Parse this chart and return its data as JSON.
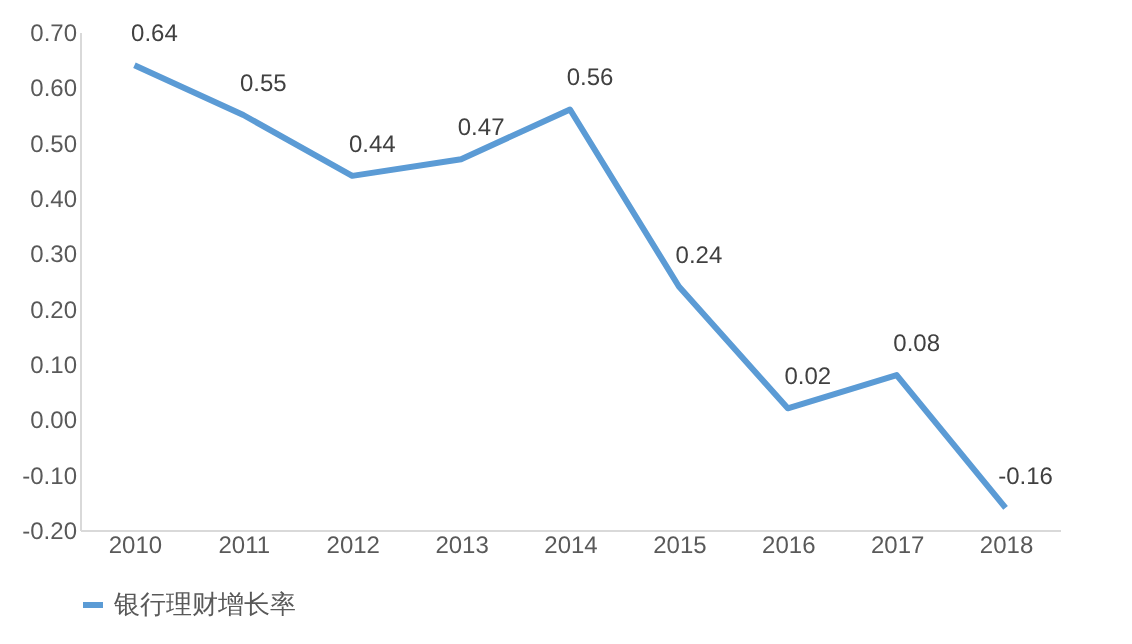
{
  "chart_data": {
    "type": "line",
    "categories": [
      "2010",
      "2011",
      "2012",
      "2013",
      "2014",
      "2015",
      "2016",
      "2017",
      "2018"
    ],
    "series": [
      {
        "name": "银行理财增长率",
        "color": "#5b9bd5",
        "values": [
          0.64,
          0.55,
          0.44,
          0.47,
          0.56,
          0.24,
          0.02,
          0.08,
          -0.16
        ]
      }
    ],
    "ylim": [
      -0.2,
      0.7
    ],
    "yticks": [
      {
        "value": -0.2,
        "label": "-0.20"
      },
      {
        "value": -0.1,
        "label": "-0.10"
      },
      {
        "value": 0,
        "label": "0.00"
      },
      {
        "value": 0.1,
        "label": "0.10"
      },
      {
        "value": 0.2,
        "label": "0.20"
      },
      {
        "value": 0.3,
        "label": "0.30"
      },
      {
        "value": 0.4,
        "label": "0.40"
      },
      {
        "value": 0.5,
        "label": "0.50"
      },
      {
        "value": 0.6,
        "label": "0.60"
      },
      {
        "value": 0.7,
        "label": "0.70"
      }
    ],
    "data_labels": true,
    "legend": "bottom",
    "grid": false,
    "marker": "none",
    "line_style": "solid"
  }
}
